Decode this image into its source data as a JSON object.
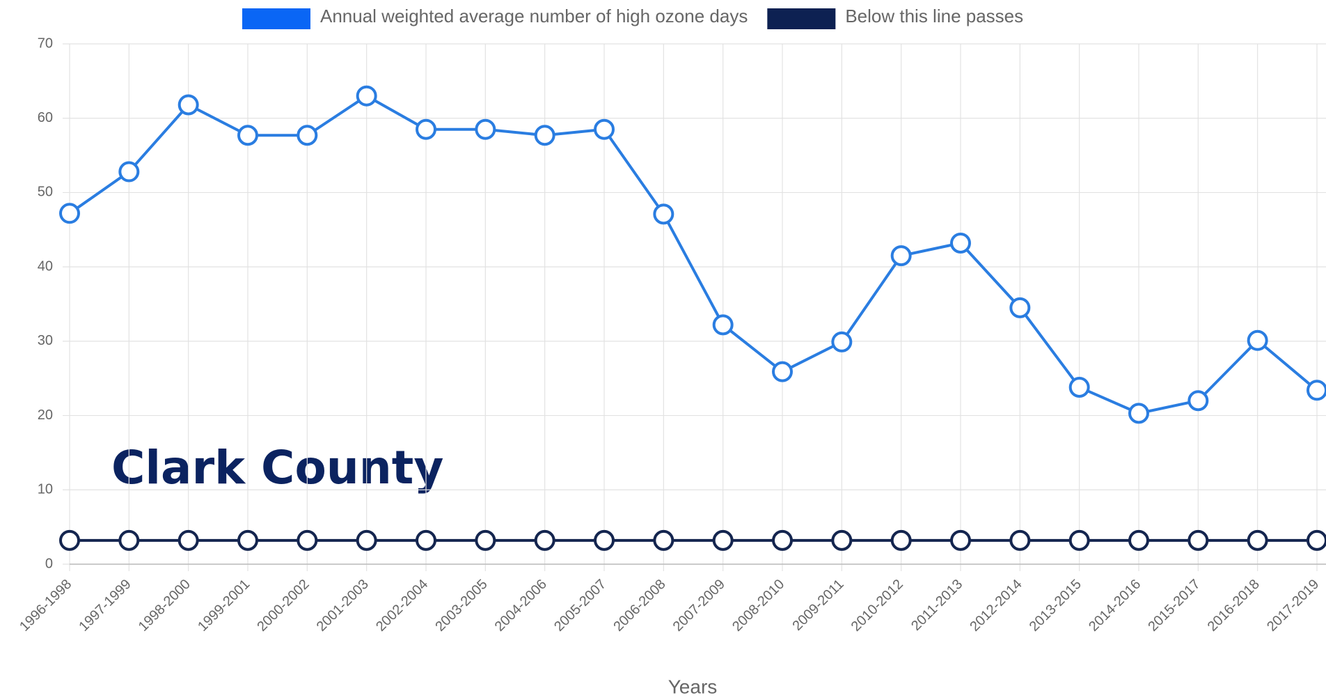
{
  "chart_data": {
    "type": "line",
    "annotation": "Clark County",
    "xlabel": "Years",
    "categories": [
      "1996-1998",
      "1997-1999",
      "1998-2000",
      "1999-2001",
      "2000-2002",
      "2001-2003",
      "2002-2004",
      "2003-2005",
      "2004-2006",
      "2005-2007",
      "2006-2008",
      "2007-2009",
      "2008-2010",
      "2009-2011",
      "2010-2012",
      "2011-2013",
      "2012-2014",
      "2013-2015",
      "2014-2016",
      "2015-2017",
      "2016-2018",
      "2017-2019"
    ],
    "series": [
      {
        "name": "Annual weighted average number of high ozone days",
        "color": "#2a7de1",
        "legend_color": "#0a66f5",
        "values": [
          47.2,
          52.8,
          61.8,
          57.7,
          57.7,
          63,
          58.5,
          58.5,
          57.7,
          58.5,
          47.1,
          32.2,
          25.9,
          29.9,
          41.5,
          43.2,
          34.5,
          23.8,
          20.3,
          22,
          30.1,
          23.4
        ]
      },
      {
        "name": "Below this line passes",
        "color": "#14254f",
        "legend_color": "#0d2152",
        "values": [
          3.2,
          3.2,
          3.2,
          3.2,
          3.2,
          3.2,
          3.2,
          3.2,
          3.2,
          3.2,
          3.2,
          3.2,
          3.2,
          3.2,
          3.2,
          3.2,
          3.2,
          3.2,
          3.2,
          3.2,
          3.2,
          3.2
        ]
      }
    ],
    "ylim": [
      0,
      70
    ],
    "yticks": [
      0,
      10,
      20,
      30,
      40,
      50,
      60,
      70
    ],
    "grid": true
  }
}
